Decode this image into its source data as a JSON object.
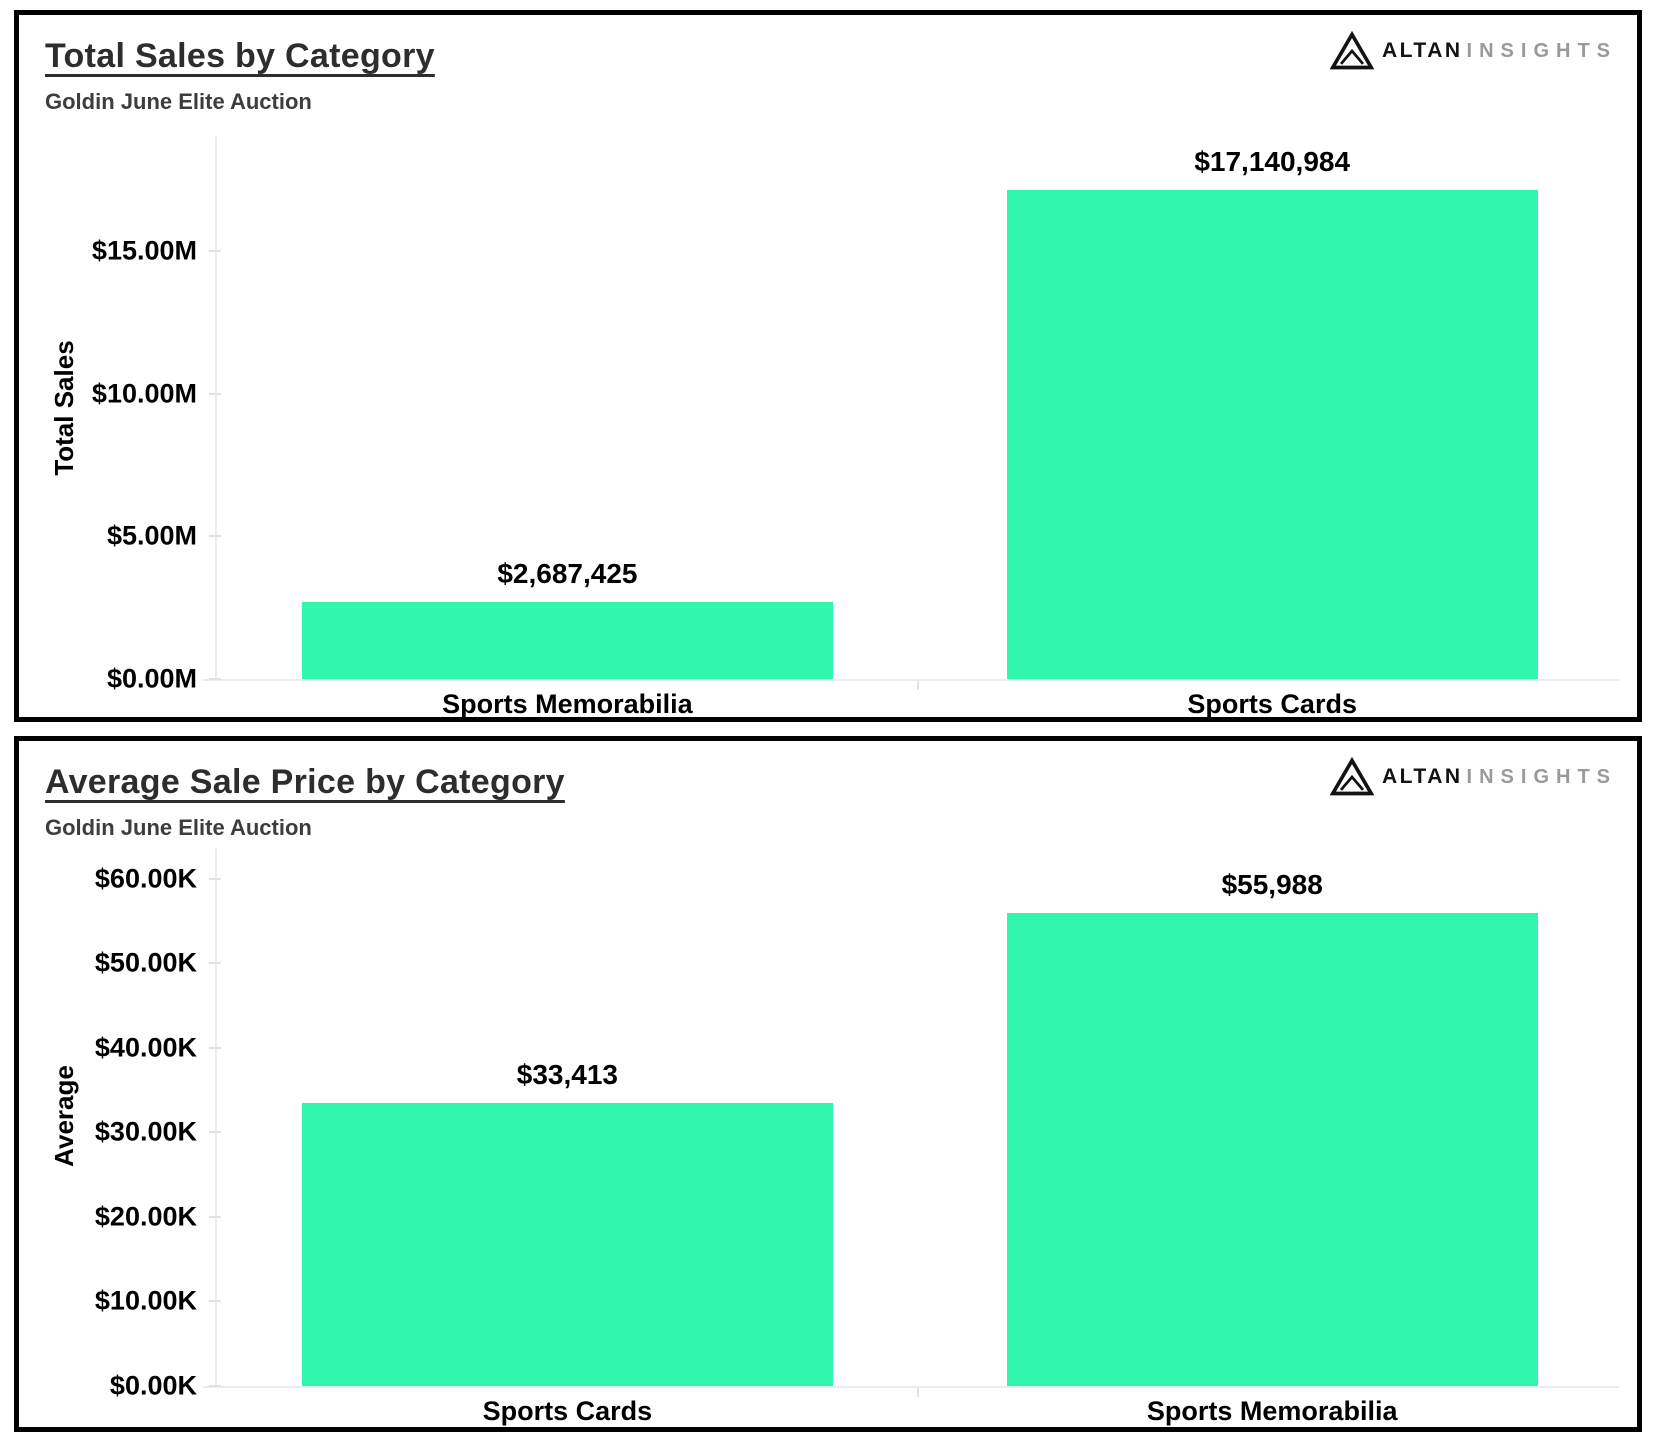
{
  "logo": {
    "brand": "ALTAN",
    "suffix": "INSIGHTS"
  },
  "colors": {
    "bar": "#30F7AC",
    "card_border": "#000000",
    "axis_line": "#ececec",
    "tick_mark": "#e2e2e2",
    "title": "#2d2d2d",
    "subtitle": "#3d3d3d",
    "label": "#000000",
    "logo_brand": "#131313",
    "logo_suffix": "#9a9a9a"
  },
  "chart_data": [
    {
      "type": "bar",
      "title": "Total Sales by Category",
      "subtitle": "Goldin June Elite Auction",
      "ylabel": "Total Sales",
      "xlabel": "",
      "categories": [
        "Sports Memorabilia",
        "Sports Cards"
      ],
      "values": [
        2687425,
        17140984
      ],
      "value_labels": [
        "$2,687,425",
        "$17,140,984"
      ],
      "ytick_values": [
        0,
        5000000,
        10000000,
        15000000
      ],
      "ytick_labels": [
        "$0.00M",
        "$5.00M",
        "$10.00M",
        "$15.00M"
      ],
      "ylim": [
        0,
        19000000
      ],
      "grid": false,
      "legend": false
    },
    {
      "type": "bar",
      "title": "Average Sale Price by Category",
      "subtitle": "Goldin June Elite Auction",
      "ylabel": "Average",
      "xlabel": "",
      "categories": [
        "Sports Cards",
        "Sports Memorabilia"
      ],
      "values": [
        33413,
        55988
      ],
      "value_labels": [
        "$33,413",
        "$55,988"
      ],
      "ytick_values": [
        0,
        10000,
        20000,
        30000,
        40000,
        50000,
        60000
      ],
      "ytick_labels": [
        "$0.00K",
        "$10.00K",
        "$20.00K",
        "$30.00K",
        "$40.00K",
        "$50.00K",
        "$60.00K"
      ],
      "ylim": [
        0,
        63500
      ],
      "grid": false,
      "legend": false
    }
  ]
}
